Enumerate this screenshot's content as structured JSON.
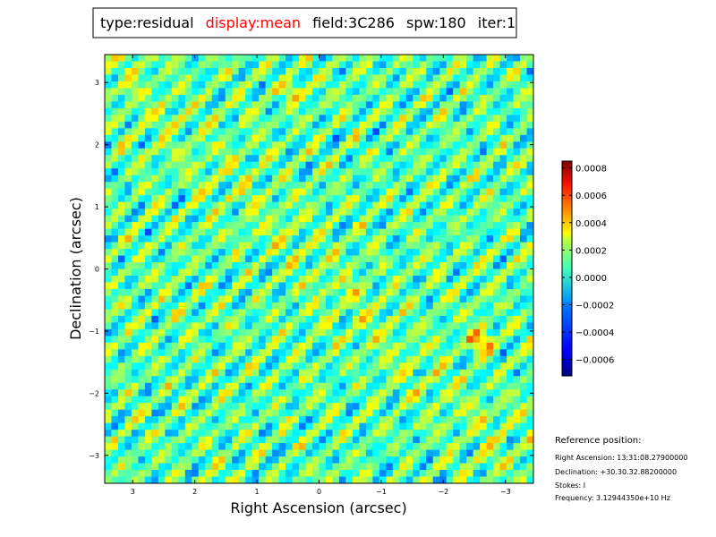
{
  "title_box": {
    "items": [
      {
        "text": "type:residual",
        "color": "#000000"
      },
      {
        "text": "display:mean",
        "color": "#ff0000"
      },
      {
        "text": "field:3C286",
        "color": "#000000"
      },
      {
        "text": "spw:180",
        "color": "#000000"
      },
      {
        "text": "iter:1",
        "color": "#000000"
      }
    ]
  },
  "reference": {
    "heading": "Reference position:",
    "lines": [
      "Right Ascension: 13:31:08.27900000",
      "Declination: +30.30.32.88200000",
      "Stokes: I",
      "Frequency: 3.12944350e+10 Hz"
    ]
  },
  "chart_data": {
    "type": "heatmap",
    "title": "",
    "xlabel": "Right Ascension (arcsec)",
    "ylabel": "Declination (arcsec)",
    "xlim": [
      3.45,
      -3.45
    ],
    "ylim": [
      -3.45,
      3.45
    ],
    "x_ticks": [
      3,
      2,
      1,
      0,
      -1,
      -2,
      -3
    ],
    "x_tick_labels": [
      "3",
      "2",
      "1",
      "0",
      "−1",
      "−2",
      "−3"
    ],
    "y_ticks": [
      3,
      2,
      1,
      0,
      -1,
      -2,
      -3
    ],
    "y_tick_labels": [
      "3",
      "2",
      "1",
      "0",
      "−1",
      "−2",
      "−3"
    ],
    "colormap": "jet",
    "colorbar": {
      "vmin": -0.00072,
      "vmax": 0.00085,
      "ticks": [
        0.0008,
        0.0006,
        0.0004,
        0.0002,
        0.0,
        -0.0002,
        -0.0004,
        -0.0006
      ],
      "tick_labels": [
        "0.0008",
        "0.0006",
        "0.0004",
        "0.0002",
        "0.0000",
        "−0.0002",
        "−0.0004",
        "−0.0006"
      ]
    },
    "pattern": "diagonal striped residual noise, stripes running from upper-left to lower-right, values mostly near 0"
  }
}
